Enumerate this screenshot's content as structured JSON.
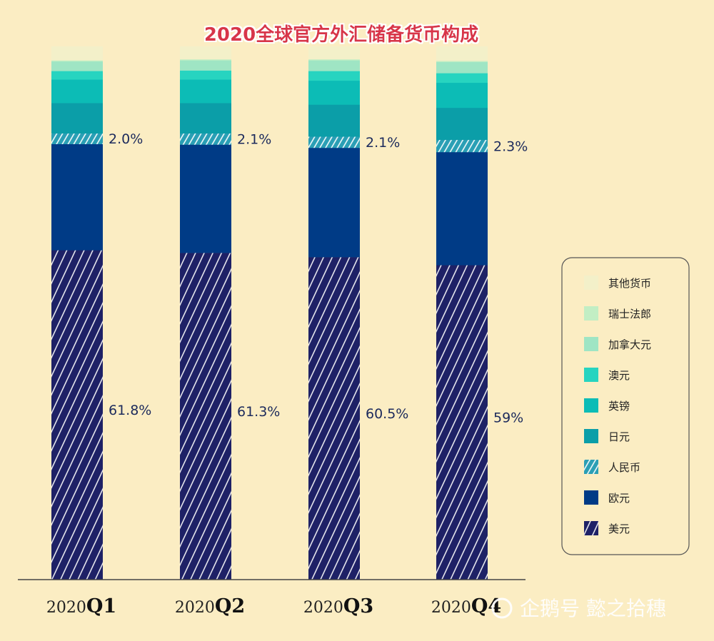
{
  "chart_data": {
    "type": "bar",
    "stacked": true,
    "title": "2020全球官方外汇储备货币构成",
    "categories": [
      "2020Q1",
      "2020Q2",
      "2020Q3",
      "2020Q4"
    ],
    "category_parts": [
      {
        "prefix": "2020",
        "quarter": "Q1"
      },
      {
        "prefix": "2020",
        "quarter": "Q2"
      },
      {
        "prefix": "2020",
        "quarter": "Q3"
      },
      {
        "prefix": "2020",
        "quarter": "Q4"
      }
    ],
    "ylim": [
      0,
      100
    ],
    "grid": false,
    "legend_position": "right",
    "series": [
      {
        "name": "美元",
        "values": [
          61.8,
          61.3,
          60.5,
          59.0
        ],
        "labels": [
          "61.8%",
          "61.3%",
          "60.5%",
          "59%"
        ],
        "color": "#1e2166",
        "hatched": true
      },
      {
        "name": "欧元",
        "values": [
          19.9,
          20.3,
          20.5,
          21.2
        ],
        "color": "#003b86"
      },
      {
        "name": "人民币",
        "values": [
          2.0,
          2.1,
          2.1,
          2.3
        ],
        "labels": [
          "2.0%",
          "2.1%",
          "2.1%",
          "2.3%"
        ],
        "color": "#2a9fb5",
        "hatched": true
      },
      {
        "name": "日元",
        "values": [
          5.7,
          5.7,
          6.0,
          6.0
        ],
        "color": "#0b9ea8"
      },
      {
        "name": "英镑",
        "values": [
          4.4,
          4.4,
          4.5,
          4.7
        ],
        "color": "#0cbcb6"
      },
      {
        "name": "澳元",
        "values": [
          1.6,
          1.7,
          1.8,
          1.8
        ],
        "color": "#27d4c0"
      },
      {
        "name": "加拿大元",
        "values": [
          1.8,
          1.9,
          2.0,
          2.1
        ],
        "color": "#9fe5c4"
      },
      {
        "name": "瑞士法郎",
        "values": [
          0.2,
          0.2,
          0.2,
          0.2
        ],
        "color": "#c2eec4"
      },
      {
        "name": "其他货币",
        "values": [
          2.6,
          2.4,
          2.4,
          2.7
        ],
        "color": "#f3f0c9"
      }
    ]
  },
  "watermark": {
    "text": "企鹅号 懿之拾穗"
  }
}
